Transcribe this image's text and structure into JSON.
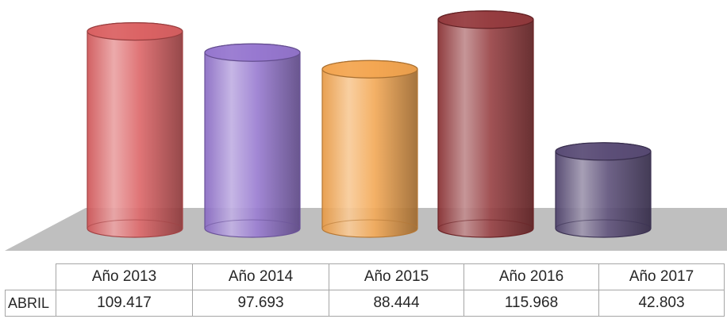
{
  "chart_data": {
    "type": "bar",
    "style": "3d-cylinder",
    "categories": [
      "Año 2013",
      "Año 2014",
      "Año 2015",
      "Año 2016",
      "Año 2017"
    ],
    "series": [
      {
        "name": "ABRIL",
        "values": [
          109417,
          97693,
          88444,
          115968,
          42803
        ]
      }
    ],
    "value_labels": [
      "109.417",
      "97.693",
      "88.444",
      "115.968",
      "42.803"
    ],
    "colors": [
      "#d9585a",
      "#8f6fcc",
      "#f2a046",
      "#8e2f33",
      "#50426e"
    ],
    "floor_color": "#bfbfbf",
    "grid": false,
    "data_table": true,
    "legend": "none"
  }
}
